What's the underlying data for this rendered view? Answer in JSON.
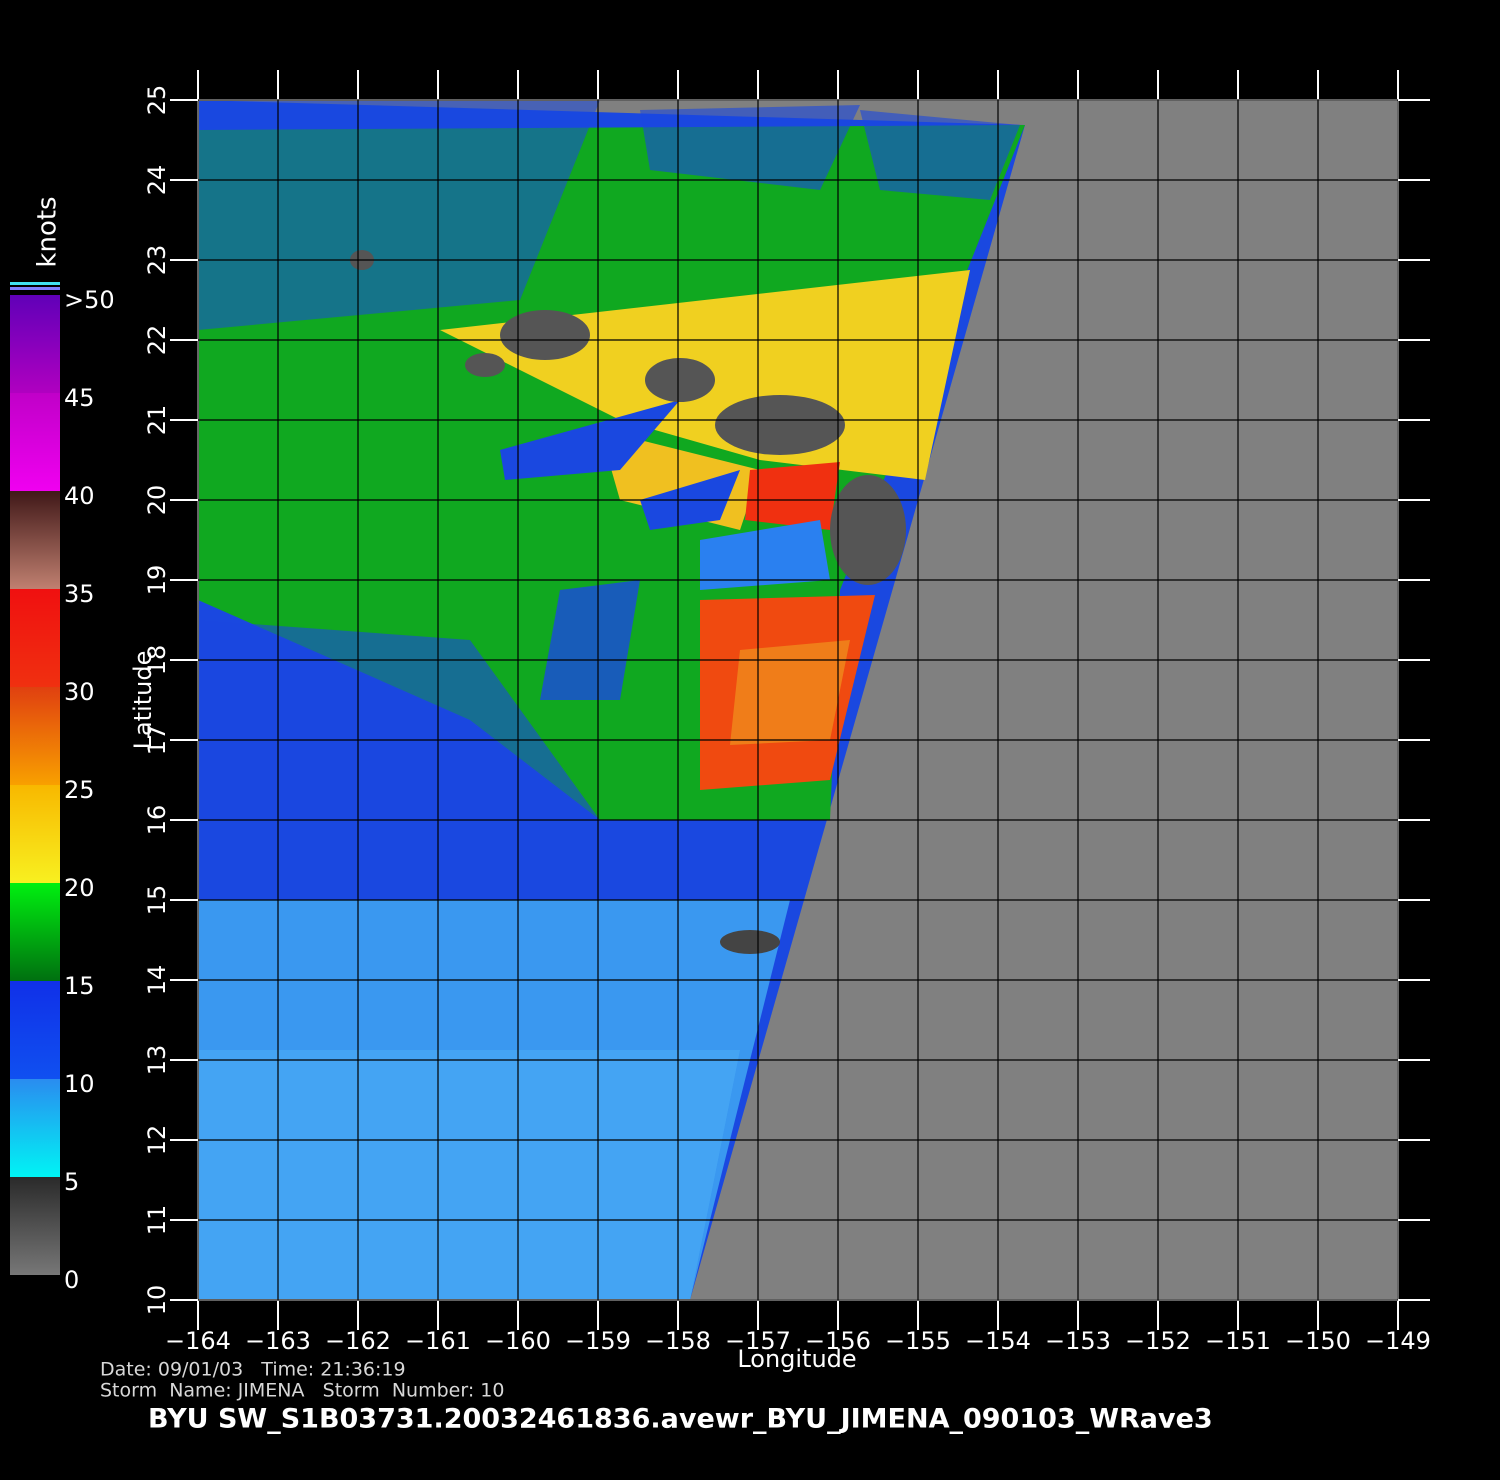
{
  "chart_data": {
    "type": "map",
    "xlabel": "Longitude",
    "ylabel": "Latitude",
    "xlim": [
      -164,
      -149
    ],
    "ylim": [
      10,
      25
    ],
    "xticks": [
      {
        "value": -164,
        "label": "−164"
      },
      {
        "value": -163,
        "label": "−163"
      },
      {
        "value": -162,
        "label": "−162"
      },
      {
        "value": -161,
        "label": "−161"
      },
      {
        "value": -160,
        "label": "−160"
      },
      {
        "value": -159,
        "label": "−159"
      },
      {
        "value": -158,
        "label": "−158"
      },
      {
        "value": -157,
        "label": "−157"
      },
      {
        "value": -156,
        "label": "−156"
      },
      {
        "value": -155,
        "label": "−155"
      },
      {
        "value": -154,
        "label": "−154"
      },
      {
        "value": -153,
        "label": "−153"
      },
      {
        "value": -152,
        "label": "−152"
      },
      {
        "value": -151,
        "label": "−151"
      },
      {
        "value": -150,
        "label": "−150"
      },
      {
        "value": -149,
        "label": "−149"
      }
    ],
    "yticks": [
      10,
      11,
      12,
      13,
      14,
      15,
      16,
      17,
      18,
      19,
      20,
      21,
      22,
      23,
      24,
      25
    ],
    "grid": true,
    "colorbar": {
      "label": "knots",
      "lim": [
        0,
        50
      ],
      "ticks": [
        0,
        5,
        10,
        15,
        20,
        25,
        30,
        35,
        40,
        45,
        {
          "value": 50,
          "label": ">50"
        }
      ],
      "colors": [
        [
          "#777777",
          "#2a2a2a"
        ],
        [
          "#00f4f4",
          "#2a8cf0"
        ],
        [
          "#1050f0",
          "#1030e8"
        ],
        [
          "#007010",
          "#00f010"
        ],
        [
          "#f8f020",
          "#f8b800"
        ],
        [
          "#f8a000",
          "#e04010"
        ],
        [
          "#f03010",
          "#f01010"
        ],
        [
          "#c08070",
          "#401818"
        ],
        [
          "#f000f0",
          "#c000c8"
        ],
        [
          "#b000c0",
          "#6000b8"
        ]
      ]
    },
    "annotations": [
      "Date: 09/01/03   Time: 21:36:19",
      "Storm  Name: JIMENA   Storm  Number: 10"
    ],
    "footer": "BYU  SW_S1B03731.20032461836.avewr_BYU_JIMENA_090103_WRave3"
  }
}
